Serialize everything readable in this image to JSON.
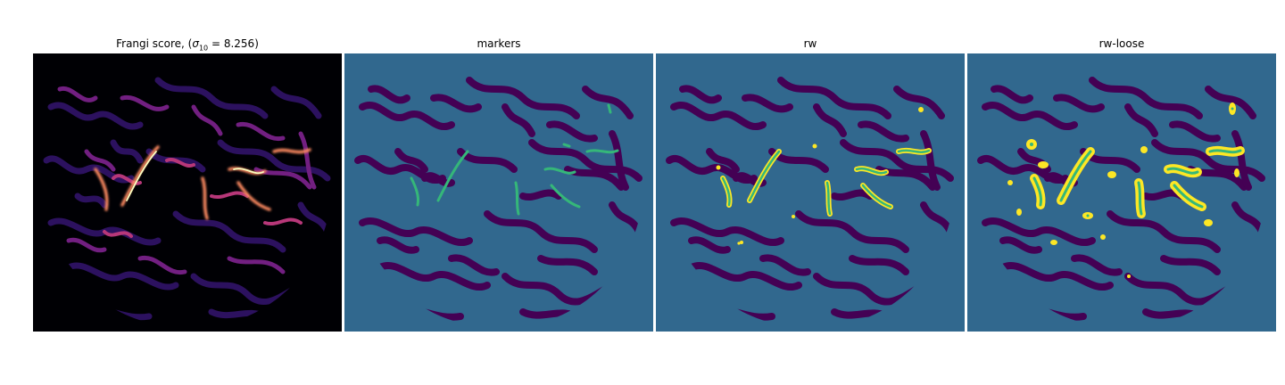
{
  "panels": [
    {
      "title_main": "Frangi score, (",
      "title_symbol": "σ",
      "title_subscript": "10",
      "title_value": " = 8.256)",
      "colormap": "magma",
      "background": "#000000"
    },
    {
      "title": "markers",
      "colormap": "viridis",
      "background": "#31688e",
      "foreground": "#440154",
      "marker_color": "#35b779"
    },
    {
      "title": "rw",
      "colormap": "viridis",
      "background": "#31688e",
      "foreground": "#440154",
      "marker_color": "#35b779",
      "segment_color": "#fde725"
    },
    {
      "title": "rw-loose",
      "colormap": "viridis",
      "background": "#31688e",
      "foreground": "#440154",
      "marker_color": "#35b779",
      "segment_color": "#fde725"
    }
  ]
}
